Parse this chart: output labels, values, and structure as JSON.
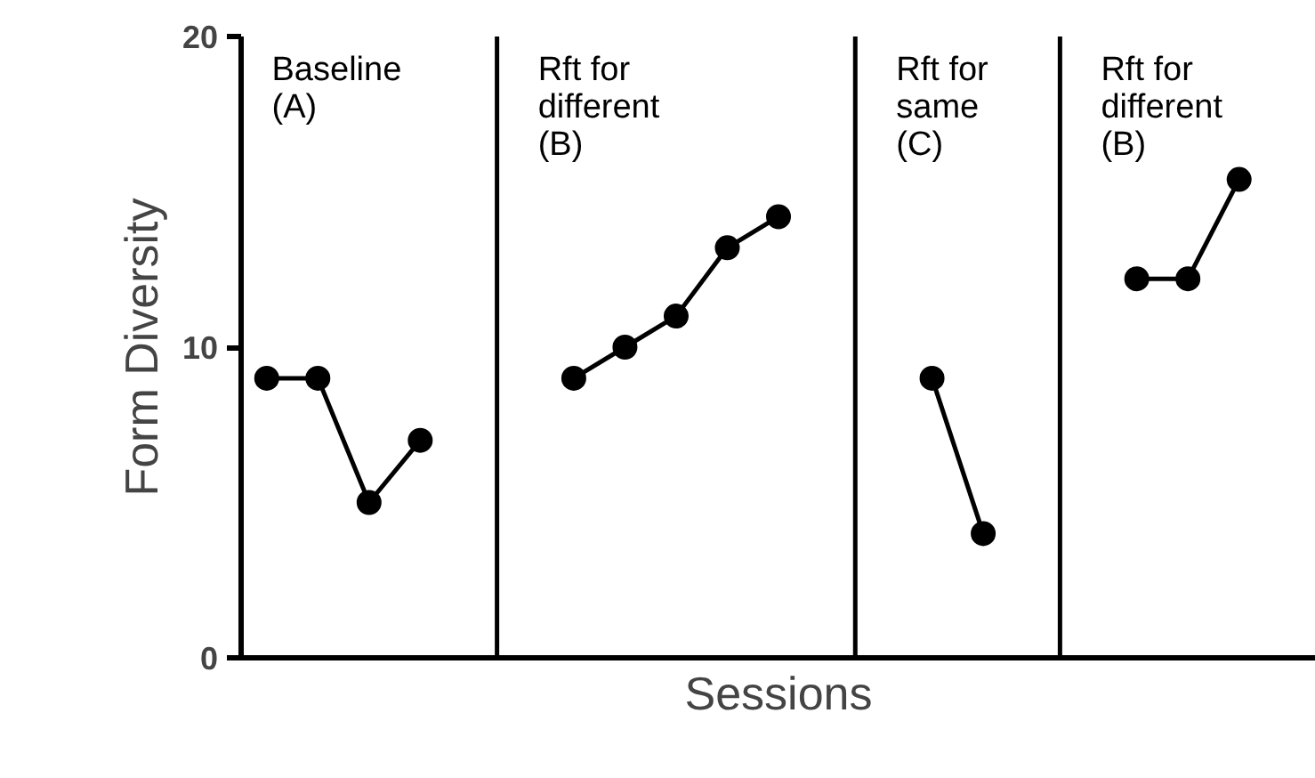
{
  "chart_data": {
    "type": "line",
    "xlabel": "Sessions",
    "ylabel": "Form Diversity",
    "categories": [
      null,
      null,
      null,
      null,
      null,
      null,
      null,
      null,
      null,
      null,
      null,
      null,
      null,
      null,
      null,
      null,
      null,
      null,
      null,
      null,
      null
    ],
    "series": [
      {
        "color": "#000000",
        "values": [
          9,
          9,
          5,
          7,
          null,
          null,
          null,
          null,
          null,
          null,
          null,
          null,
          null,
          null,
          null,
          null,
          null,
          null,
          null,
          null,
          null
        ]
      },
      {
        "color": "#000000",
        "values": [
          null,
          null,
          null,
          null,
          null,
          null,
          9,
          10,
          11,
          13.2,
          14.2,
          null,
          null,
          null,
          null,
          null,
          null,
          null,
          null,
          null,
          null
        ]
      },
      {
        "color": "#000000",
        "values": [
          null,
          null,
          null,
          null,
          null,
          null,
          null,
          null,
          null,
          null,
          null,
          null,
          null,
          9,
          4,
          null,
          null,
          null,
          null,
          null,
          null
        ]
      },
      {
        "color": "#000000",
        "values": [
          null,
          null,
          null,
          null,
          null,
          null,
          null,
          null,
          null,
          null,
          null,
          null,
          null,
          null,
          null,
          null,
          null,
          12.2,
          12.2,
          15.4,
          null
        ]
      }
    ],
    "annotations": [
      "Baseline\n(A)",
      "Rft for\ndifferent\n(B)",
      "Rft for\nsame\n(C)",
      "Rft for\ndifferent\n(B)"
    ],
    "ylim": [
      0,
      20
    ],
    "yticks": [
      0,
      10,
      20
    ],
    "tick_labels": "y",
    "marker": "circle",
    "line_style": "solid",
    "grid": false
  }
}
